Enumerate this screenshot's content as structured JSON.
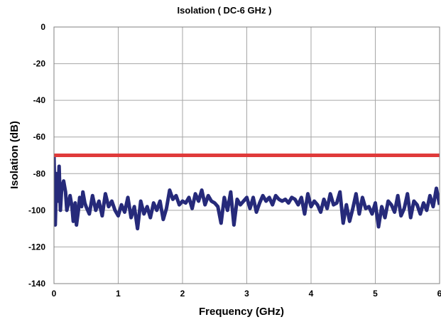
{
  "chart_data": {
    "type": "line",
    "title": "Isolation ( DC-6 GHz )",
    "xlabel": "Frequency (GHz)",
    "ylabel": "Isolation (dB)",
    "xlim": [
      0,
      6
    ],
    "ylim": [
      -140,
      0
    ],
    "xticks": [
      "0",
      "1",
      "2",
      "3",
      "4",
      "5",
      "6"
    ],
    "yticks": [
      "0",
      "-20",
      "-40",
      "-60",
      "-80",
      "-100",
      "-120",
      "-140"
    ],
    "grid": true,
    "series": [
      {
        "color": "#262a7a",
        "x": [
          0,
          0.02,
          0.04,
          0.06,
          0.08,
          0.1,
          0.12,
          0.15,
          0.18,
          0.2,
          0.22,
          0.25,
          0.28,
          0.3,
          0.33,
          0.35,
          0.38,
          0.4,
          0.43,
          0.45,
          0.48,
          0.5,
          0.55,
          0.6,
          0.65,
          0.7,
          0.75,
          0.8,
          0.85,
          0.9,
          0.95,
          1.0,
          1.05,
          1.1,
          1.15,
          1.2,
          1.25,
          1.3,
          1.35,
          1.4,
          1.45,
          1.5,
          1.55,
          1.6,
          1.65,
          1.7,
          1.75,
          1.8,
          1.85,
          1.9,
          1.95,
          2.0,
          2.05,
          2.1,
          2.15,
          2.2,
          2.25,
          2.3,
          2.35,
          2.4,
          2.45,
          2.5,
          2.55,
          2.6,
          2.65,
          2.7,
          2.75,
          2.8,
          2.85,
          2.9,
          2.95,
          3.0,
          3.05,
          3.1,
          3.15,
          3.2,
          3.25,
          3.3,
          3.35,
          3.4,
          3.45,
          3.5,
          3.55,
          3.6,
          3.65,
          3.7,
          3.75,
          3.8,
          3.85,
          3.9,
          3.95,
          4.0,
          4.05,
          4.1,
          4.15,
          4.2,
          4.25,
          4.3,
          4.35,
          4.4,
          4.45,
          4.5,
          4.55,
          4.6,
          4.65,
          4.7,
          4.75,
          4.8,
          4.85,
          4.9,
          4.95,
          5.0,
          5.05,
          5.1,
          5.15,
          5.2,
          5.25,
          5.3,
          5.35,
          5.4,
          5.45,
          5.5,
          5.55,
          5.6,
          5.65,
          5.7,
          5.75,
          5.8,
          5.85,
          5.9,
          5.95,
          6.0
        ],
        "y": [
          -70,
          -108,
          -80,
          -95,
          -76,
          -100,
          -88,
          -84,
          -90,
          -100,
          -97,
          -92,
          -98,
          -106,
          -96,
          -108,
          -100,
          -93,
          -98,
          -90,
          -96,
          -98,
          -102,
          -92,
          -100,
          -95,
          -103,
          -91,
          -98,
          -95,
          -100,
          -103,
          -97,
          -101,
          -93,
          -104,
          -98,
          -110,
          -95,
          -102,
          -98,
          -104,
          -96,
          -100,
          -95,
          -105,
          -99,
          -89,
          -94,
          -92,
          -97,
          -95,
          -96,
          -93,
          -99,
          -91,
          -95,
          -89,
          -97,
          -92,
          -95,
          -96,
          -98,
          -107,
          -93,
          -100,
          -90,
          -108,
          -94,
          -97,
          -95,
          -93,
          -99,
          -93,
          -101,
          -96,
          -92,
          -95,
          -93,
          -97,
          -92,
          -94,
          -95,
          -94,
          -96,
          -93,
          -94,
          -97,
          -93,
          -102,
          -91,
          -98,
          -95,
          -97,
          -101,
          -94,
          -99,
          -91,
          -97,
          -96,
          -90,
          -107,
          -97,
          -106,
          -99,
          -91,
          -102,
          -93,
          -99,
          -98,
          -102,
          -96,
          -109,
          -98,
          -104,
          -95,
          -97,
          -101,
          -92,
          -103,
          -99,
          -91,
          -104,
          -95,
          -97,
          -102,
          -96,
          -100,
          -92,
          -98,
          -88,
          -97
        ]
      },
      {
        "color": "#e03a3a",
        "x": [
          0,
          6
        ],
        "y": [
          -70,
          -70
        ]
      }
    ]
  }
}
